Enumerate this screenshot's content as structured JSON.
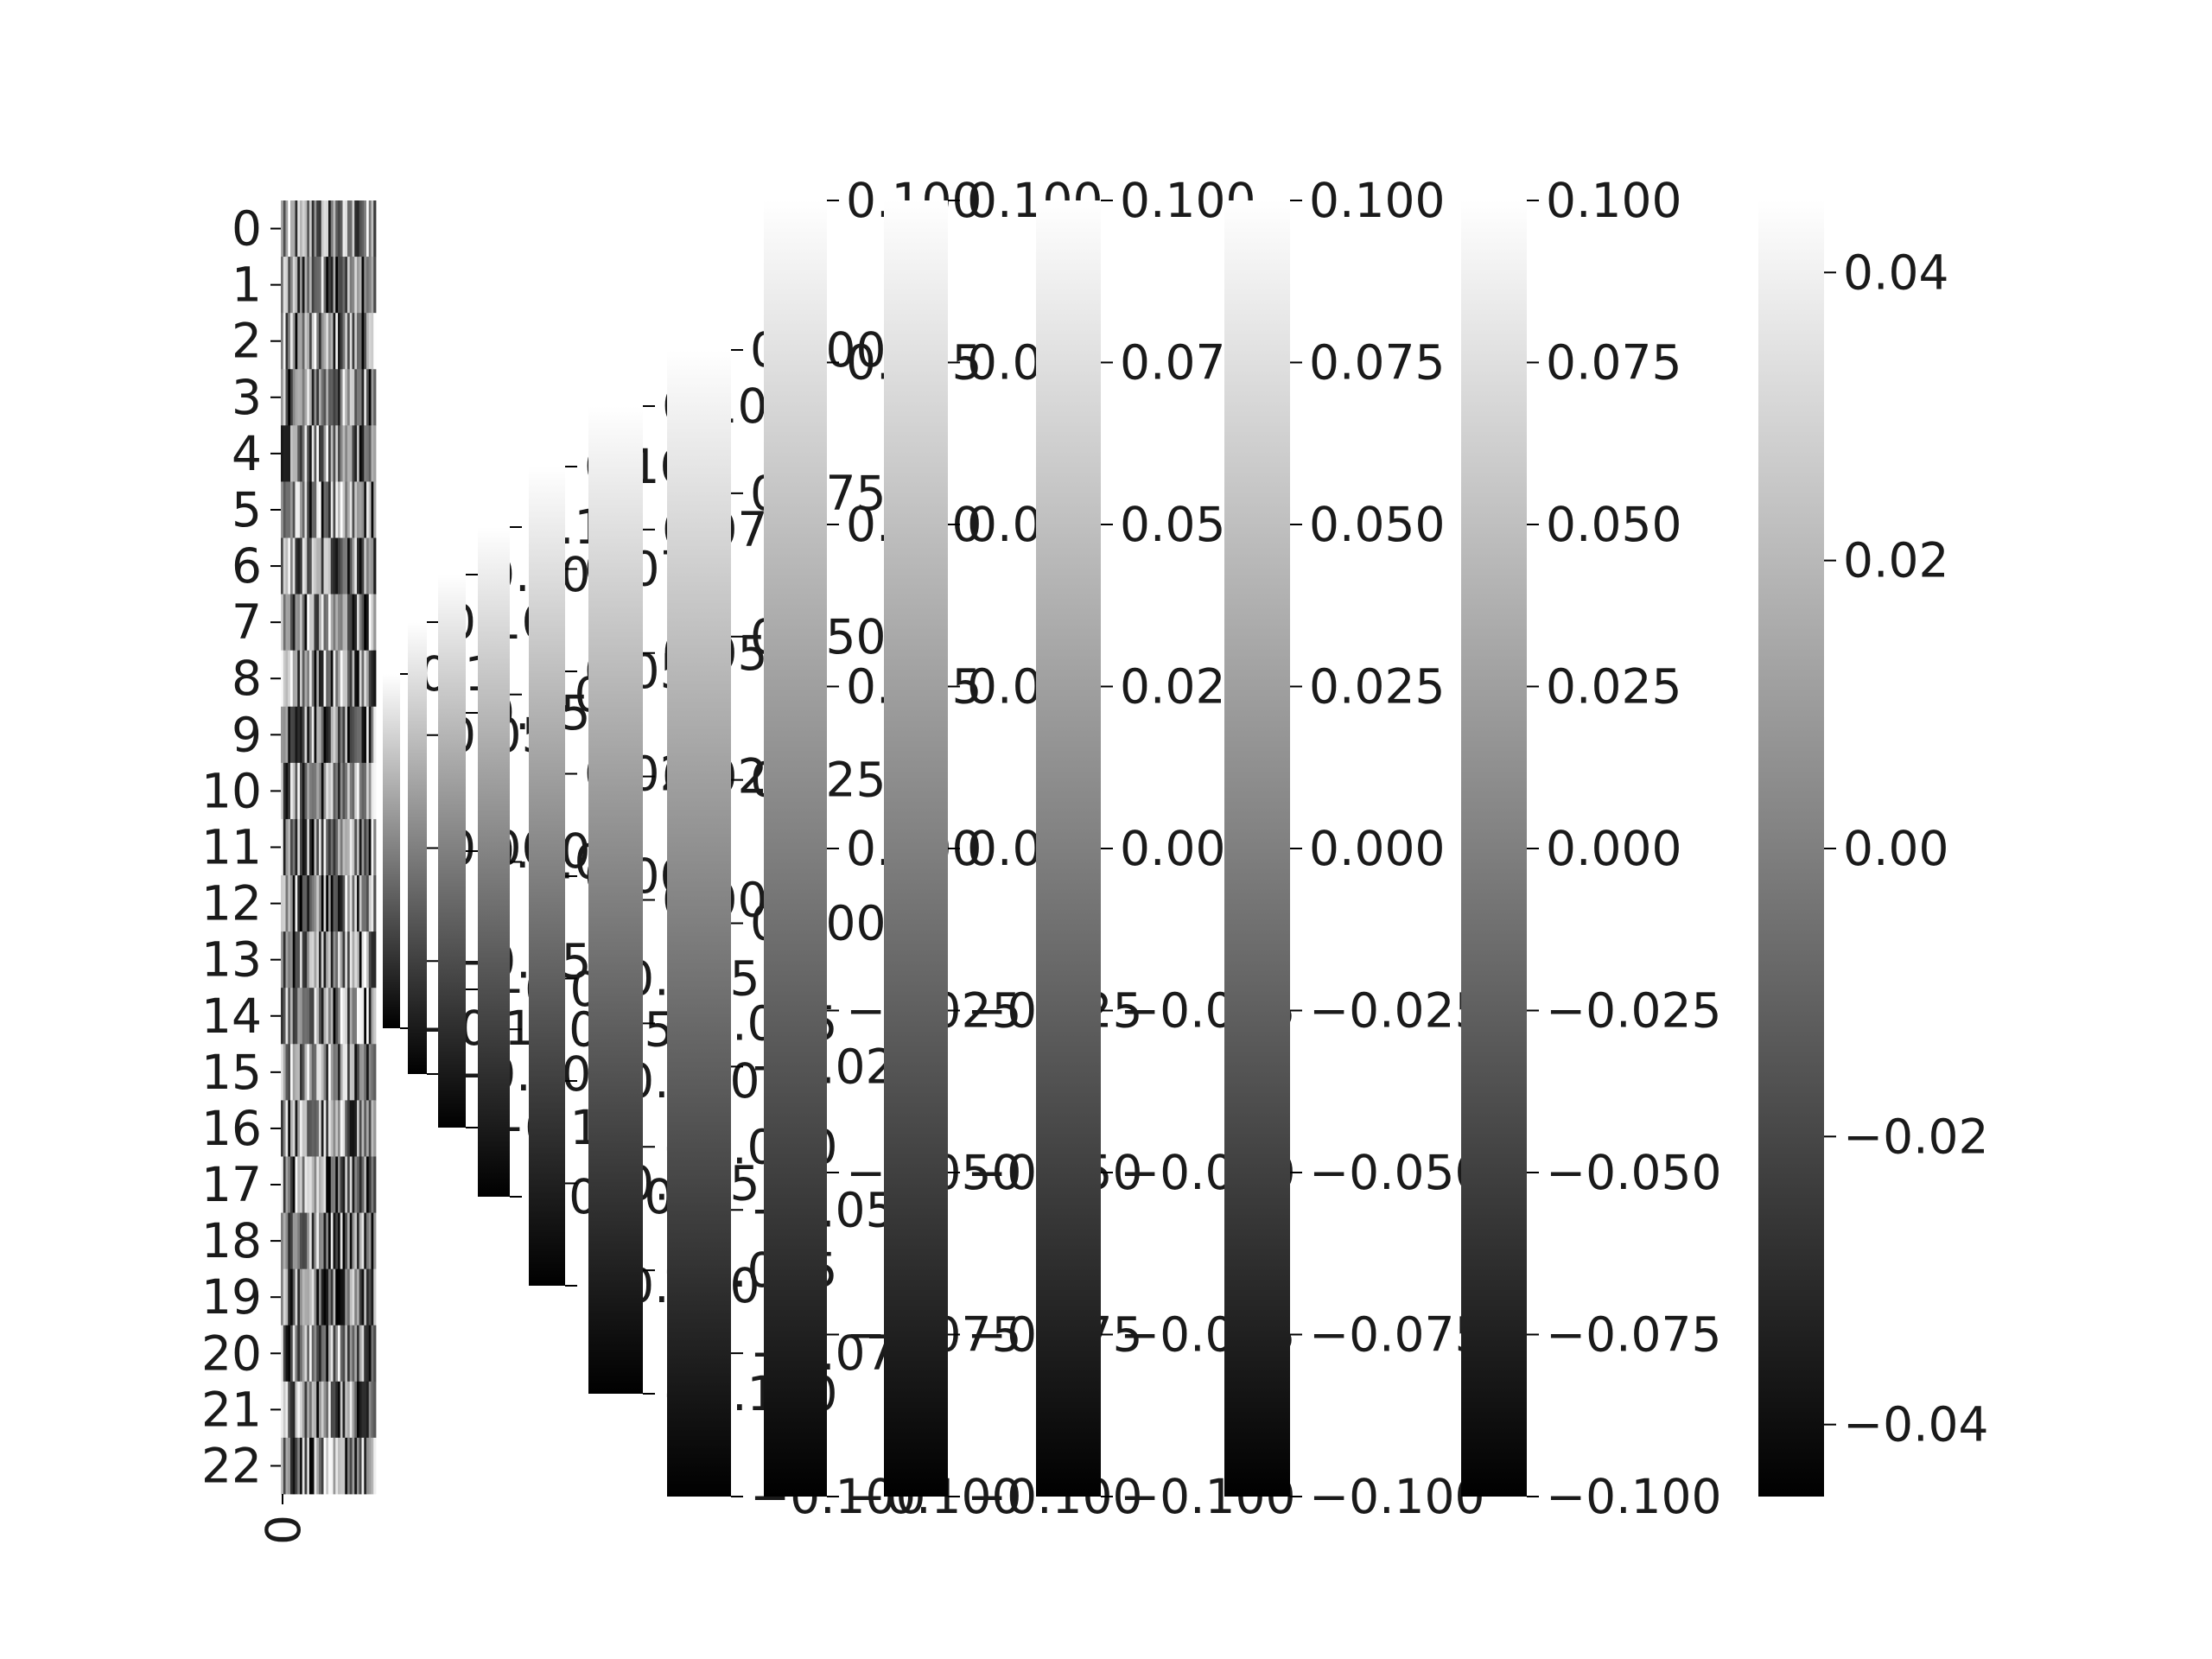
{
  "chart_data": [
    {
      "type": "heatmap",
      "colormap": "gray",
      "yticklabels": [
        "0",
        "1",
        "2",
        "3",
        "4",
        "5",
        "6",
        "7",
        "8",
        "9",
        "10",
        "11",
        "12",
        "13",
        "14",
        "15",
        "16",
        "17",
        "18",
        "19",
        "20",
        "21",
        "22"
      ],
      "xticklabels": [
        "0"
      ],
      "rows": 23,
      "grid": false
    },
    {
      "type": "colorbar",
      "colormap": "gray",
      "range": [
        -0.1,
        0.1
      ],
      "ticks": [
        "−0.1",
        "0.1"
      ]
    },
    {
      "type": "colorbar",
      "colormap": "gray",
      "range": [
        -0.1,
        0.1
      ],
      "ticks": [
        "−0.10",
        "−0.05",
        "0.00",
        "0.05",
        "0.10"
      ]
    },
    {
      "type": "colorbar",
      "colormap": "gray",
      "range": [
        -0.1,
        0.1
      ],
      "ticks": [
        "−0.10",
        "−0.05",
        "0.00",
        "0.05",
        "0.10"
      ]
    },
    {
      "type": "colorbar",
      "colormap": "gray",
      "range": [
        -0.1,
        0.1
      ],
      "ticks": [
        "−0.10",
        "−0.05",
        "0.00",
        "0.05",
        "0.10"
      ]
    },
    {
      "type": "colorbar",
      "colormap": "gray",
      "range": [
        -0.1,
        0.1
      ],
      "ticks": [
        "−0.100",
        "−0.075",
        "−0.050",
        "−0.025",
        "0.000",
        "0.025",
        "0.050",
        "0.075",
        "0.100"
      ]
    },
    {
      "type": "colorbar",
      "colormap": "gray",
      "range": [
        -0.1,
        0.1
      ],
      "ticks": [
        "−0.100",
        "−0.075",
        "−0.050",
        "−0.025",
        "0.000",
        "0.025",
        "0.050",
        "0.075",
        "0.100"
      ]
    },
    {
      "type": "colorbar",
      "colormap": "gray",
      "range": [
        -0.1,
        0.1
      ],
      "ticks": [
        "−0.100",
        "−0.075",
        "−0.050",
        "−0.025",
        "0.000",
        "0.025",
        "0.050",
        "0.075",
        "0.100"
      ]
    },
    {
      "type": "colorbar",
      "colormap": "gray",
      "range": [
        -0.1,
        0.1
      ],
      "ticks": [
        "−0.100",
        "−0.075",
        "−0.050",
        "−0.025",
        "0.000",
        "0.025",
        "0.050",
        "0.075",
        "0.100"
      ]
    },
    {
      "type": "colorbar",
      "colormap": "gray",
      "range": [
        -0.1,
        0.1
      ],
      "ticks": [
        "−0.100",
        "−0.075",
        "−0.050",
        "−0.025",
        "0.000",
        "0.025",
        "0.050",
        "0.075",
        "0.100"
      ]
    },
    {
      "type": "colorbar",
      "colormap": "gray",
      "range": [
        -0.1,
        0.1
      ],
      "ticks": [
        "−0.100",
        "−0.075",
        "−0.050",
        "−0.025",
        "0.000",
        "0.025",
        "0.050",
        "0.075",
        "0.100"
      ]
    },
    {
      "type": "colorbar",
      "colormap": "gray",
      "range": [
        -0.1,
        0.1
      ],
      "ticks": [
        "−0.100",
        "−0.075",
        "−0.050",
        "−0.025",
        "0.000",
        "0.025",
        "0.050",
        "0.075",
        "0.100"
      ]
    },
    {
      "type": "colorbar",
      "colormap": "gray",
      "range": [
        -0.1,
        0.1
      ],
      "ticks": [
        "−0.100",
        "−0.075",
        "−0.050",
        "−0.025",
        "0.000",
        "0.025",
        "0.050",
        "0.075",
        "0.100"
      ]
    },
    {
      "type": "colorbar",
      "colormap": "gray",
      "range": [
        -0.045,
        0.045
      ],
      "ticks": [
        "−0.04",
        "−0.02",
        "0.00",
        "0.02",
        "0.04"
      ]
    }
  ]
}
